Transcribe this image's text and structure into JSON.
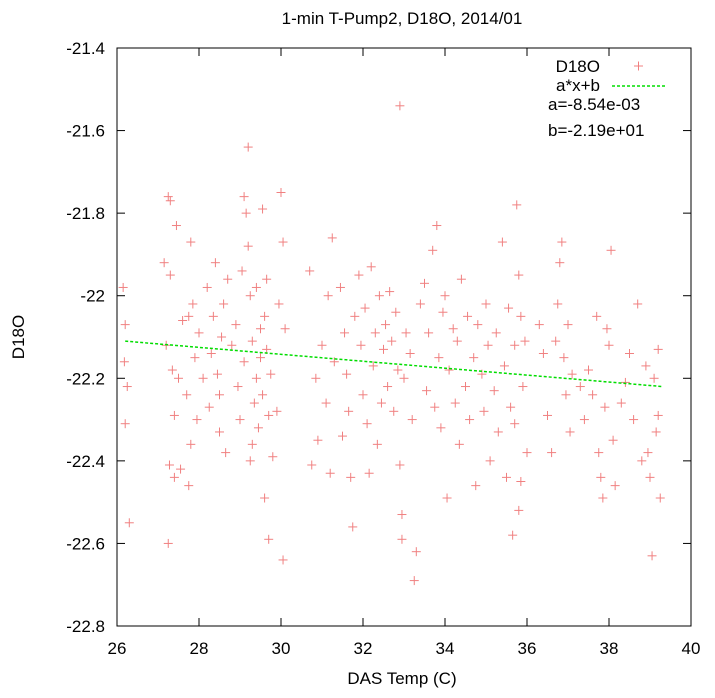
{
  "chart_data": {
    "type": "scatter",
    "title": "1-min T-Pump2, D18O, 2014/01",
    "xlabel": "DAS Temp (C)",
    "ylabel": "D18O",
    "xlim": [
      26,
      40
    ],
    "ylim": [
      -22.8,
      -21.4
    ],
    "xticks": [
      "26",
      "28",
      "30",
      "32",
      "34",
      "36",
      "38",
      "40"
    ],
    "yticks": [
      "-21.4",
      "-21.6",
      "-21.8",
      "-22",
      "-22.2",
      "-22.4",
      "-22.6",
      "-22.8"
    ],
    "grid": false,
    "legend_position": "top-right",
    "series": [
      {
        "name": "D18O",
        "kind": "points",
        "marker": "plus",
        "color": "#f08080",
        "points": [
          [
            26.15,
            -21.98
          ],
          [
            26.2,
            -22.07
          ],
          [
            26.25,
            -22.22
          ],
          [
            26.2,
            -22.31
          ],
          [
            26.3,
            -22.55
          ],
          [
            26.18,
            -22.16
          ],
          [
            27.25,
            -21.76
          ],
          [
            27.3,
            -21.77
          ],
          [
            27.45,
            -21.83
          ],
          [
            27.3,
            -21.95
          ],
          [
            27.2,
            -22.12
          ],
          [
            27.35,
            -22.18
          ],
          [
            27.5,
            -22.2
          ],
          [
            27.28,
            -22.41
          ],
          [
            27.4,
            -22.44
          ],
          [
            27.55,
            -22.42
          ],
          [
            27.25,
            -22.6
          ],
          [
            27.4,
            -22.29
          ],
          [
            27.15,
            -21.92
          ],
          [
            27.6,
            -22.06
          ],
          [
            27.75,
            -22.05
          ],
          [
            27.8,
            -21.87
          ],
          [
            27.85,
            -22.02
          ],
          [
            27.9,
            -22.15
          ],
          [
            27.7,
            -22.24
          ],
          [
            27.95,
            -22.3
          ],
          [
            27.8,
            -22.36
          ],
          [
            27.75,
            -22.46
          ],
          [
            28.0,
            -22.09
          ],
          [
            28.1,
            -22.2
          ],
          [
            28.2,
            -21.98
          ],
          [
            28.3,
            -22.14
          ],
          [
            28.25,
            -22.27
          ],
          [
            28.35,
            -22.05
          ],
          [
            28.4,
            -21.92
          ],
          [
            28.45,
            -22.19
          ],
          [
            28.5,
            -22.33
          ],
          [
            28.55,
            -22.1
          ],
          [
            28.6,
            -22.02
          ],
          [
            28.5,
            -22.24
          ],
          [
            28.65,
            -22.38
          ],
          [
            28.7,
            -21.96
          ],
          [
            28.8,
            -22.12
          ],
          [
            28.9,
            -22.07
          ],
          [
            28.95,
            -22.22
          ],
          [
            29.0,
            -22.3
          ],
          [
            29.05,
            -21.94
          ],
          [
            29.1,
            -22.16
          ],
          [
            29.1,
            -21.76
          ],
          [
            29.2,
            -21.64
          ],
          [
            29.15,
            -21.8
          ],
          [
            29.2,
            -21.88
          ],
          [
            29.25,
            -22.0
          ],
          [
            29.3,
            -22.11
          ],
          [
            29.35,
            -22.26
          ],
          [
            29.25,
            -22.4
          ],
          [
            29.4,
            -22.2
          ],
          [
            29.45,
            -22.32
          ],
          [
            29.5,
            -22.08
          ],
          [
            29.55,
            -22.24
          ],
          [
            29.6,
            -22.05
          ],
          [
            29.65,
            -22.13
          ],
          [
            29.7,
            -22.29
          ],
          [
            29.6,
            -22.49
          ],
          [
            29.75,
            -22.19
          ],
          [
            29.55,
            -21.79
          ],
          [
            29.7,
            -22.59
          ],
          [
            29.65,
            -21.96
          ],
          [
            29.8,
            -22.39
          ],
          [
            29.5,
            -22.15
          ],
          [
            29.4,
            -21.98
          ],
          [
            29.3,
            -22.36
          ],
          [
            30.0,
            -21.75
          ],
          [
            30.05,
            -21.87
          ],
          [
            29.95,
            -22.02
          ],
          [
            30.1,
            -22.08
          ],
          [
            30.05,
            -22.64
          ],
          [
            29.9,
            -22.28
          ],
          [
            30.7,
            -21.94
          ],
          [
            30.85,
            -22.2
          ],
          [
            30.9,
            -22.35
          ],
          [
            30.75,
            -22.41
          ],
          [
            31.0,
            -22.12
          ],
          [
            31.1,
            -22.26
          ],
          [
            31.2,
            -22.43
          ],
          [
            31.25,
            -21.86
          ],
          [
            31.3,
            -22.16
          ],
          [
            31.15,
            -22.0
          ],
          [
            31.45,
            -21.98
          ],
          [
            31.5,
            -22.34
          ],
          [
            31.55,
            -22.09
          ],
          [
            31.6,
            -22.19
          ],
          [
            31.7,
            -22.44
          ],
          [
            31.75,
            -22.56
          ],
          [
            31.8,
            -22.05
          ],
          [
            31.65,
            -22.28
          ],
          [
            31.9,
            -21.95
          ],
          [
            31.95,
            -22.12
          ],
          [
            32.0,
            -22.24
          ],
          [
            32.05,
            -22.03
          ],
          [
            32.1,
            -22.31
          ],
          [
            32.15,
            -22.43
          ],
          [
            32.2,
            -21.93
          ],
          [
            32.25,
            -22.17
          ],
          [
            32.3,
            -22.09
          ],
          [
            32.35,
            -22.36
          ],
          [
            32.4,
            -22.0
          ],
          [
            32.45,
            -22.26
          ],
          [
            32.5,
            -22.13
          ],
          [
            32.55,
            -22.07
          ],
          [
            32.6,
            -22.22
          ],
          [
            32.65,
            -21.99
          ],
          [
            32.7,
            -22.11
          ],
          [
            32.75,
            -22.28
          ],
          [
            32.8,
            -22.04
          ],
          [
            32.85,
            -22.18
          ],
          [
            32.9,
            -21.54
          ],
          [
            32.9,
            -22.41
          ],
          [
            32.95,
            -22.53
          ],
          [
            33.0,
            -22.2
          ],
          [
            33.05,
            -22.09
          ],
          [
            32.95,
            -22.59
          ],
          [
            33.2,
            -22.3
          ],
          [
            33.25,
            -22.69
          ],
          [
            33.3,
            -22.62
          ],
          [
            33.15,
            -22.14
          ],
          [
            33.4,
            -22.02
          ],
          [
            33.5,
            -21.97
          ],
          [
            33.55,
            -22.23
          ],
          [
            33.6,
            -22.09
          ],
          [
            33.7,
            -21.89
          ],
          [
            33.75,
            -22.27
          ],
          [
            33.8,
            -21.83
          ],
          [
            33.85,
            -22.15
          ],
          [
            33.9,
            -22.32
          ],
          [
            33.95,
            -22.04
          ],
          [
            34.0,
            -22.0
          ],
          [
            34.05,
            -22.49
          ],
          [
            34.1,
            -22.18
          ],
          [
            34.2,
            -22.08
          ],
          [
            34.25,
            -22.26
          ],
          [
            34.3,
            -22.11
          ],
          [
            34.35,
            -22.36
          ],
          [
            34.4,
            -21.96
          ],
          [
            34.5,
            -22.22
          ],
          [
            34.55,
            -22.05
          ],
          [
            34.6,
            -22.3
          ],
          [
            34.7,
            -22.15
          ],
          [
            34.75,
            -22.46
          ],
          [
            34.8,
            -22.07
          ],
          [
            34.9,
            -22.19
          ],
          [
            34.95,
            -22.28
          ],
          [
            35.0,
            -22.02
          ],
          [
            35.05,
            -22.12
          ],
          [
            35.1,
            -22.4
          ],
          [
            35.2,
            -22.23
          ],
          [
            35.25,
            -22.09
          ],
          [
            35.3,
            -22.33
          ],
          [
            35.4,
            -21.87
          ],
          [
            35.45,
            -22.17
          ],
          [
            35.5,
            -22.44
          ],
          [
            35.55,
            -22.03
          ],
          [
            35.6,
            -22.27
          ],
          [
            35.65,
            -22.58
          ],
          [
            35.7,
            -22.12
          ],
          [
            35.75,
            -21.78
          ],
          [
            35.8,
            -21.95
          ],
          [
            35.85,
            -22.05
          ],
          [
            35.9,
            -22.22
          ],
          [
            35.8,
            -22.52
          ],
          [
            35.95,
            -22.11
          ],
          [
            35.7,
            -22.31
          ],
          [
            36.0,
            -22.38
          ],
          [
            35.85,
            -22.45
          ],
          [
            36.4,
            -22.14
          ],
          [
            36.5,
            -22.29
          ],
          [
            36.6,
            -22.38
          ],
          [
            36.7,
            -22.11
          ],
          [
            36.8,
            -21.92
          ],
          [
            36.85,
            -21.87
          ],
          [
            36.9,
            -22.15
          ],
          [
            36.95,
            -22.24
          ],
          [
            37.0,
            -22.07
          ],
          [
            37.05,
            -22.33
          ],
          [
            37.1,
            -22.19
          ],
          [
            36.75,
            -22.02
          ],
          [
            37.4,
            -22.3
          ],
          [
            37.5,
            -22.18
          ],
          [
            37.6,
            -22.24
          ],
          [
            37.7,
            -22.05
          ],
          [
            37.75,
            -22.38
          ],
          [
            37.8,
            -22.44
          ],
          [
            37.85,
            -22.49
          ],
          [
            37.9,
            -22.27
          ],
          [
            38.0,
            -22.12
          ],
          [
            38.05,
            -21.89
          ],
          [
            38.1,
            -22.35
          ],
          [
            38.15,
            -22.46
          ],
          [
            38.4,
            -22.21
          ],
          [
            38.5,
            -22.14
          ],
          [
            38.6,
            -22.3
          ],
          [
            38.7,
            -22.02
          ],
          [
            38.8,
            -22.4
          ],
          [
            38.9,
            -22.17
          ],
          [
            38.95,
            -22.38
          ],
          [
            39.0,
            -22.44
          ],
          [
            39.05,
            -22.63
          ],
          [
            39.1,
            -22.2
          ],
          [
            39.2,
            -22.13
          ],
          [
            39.25,
            -22.49
          ],
          [
            39.2,
            -22.29
          ],
          [
            39.15,
            -22.33
          ],
          [
            38.3,
            -22.26
          ],
          [
            37.95,
            -22.08
          ],
          [
            37.3,
            -22.22
          ],
          [
            36.3,
            -22.07
          ]
        ]
      },
      {
        "name": "a*x+b",
        "kind": "line",
        "color": "#00dd00",
        "style": "dashed",
        "points": [
          [
            26.2,
            -22.11
          ],
          [
            39.3,
            -22.22
          ]
        ]
      }
    ],
    "fit_params": [
      "a=-8.54e-03",
      "b=-2.19e+01"
    ]
  }
}
